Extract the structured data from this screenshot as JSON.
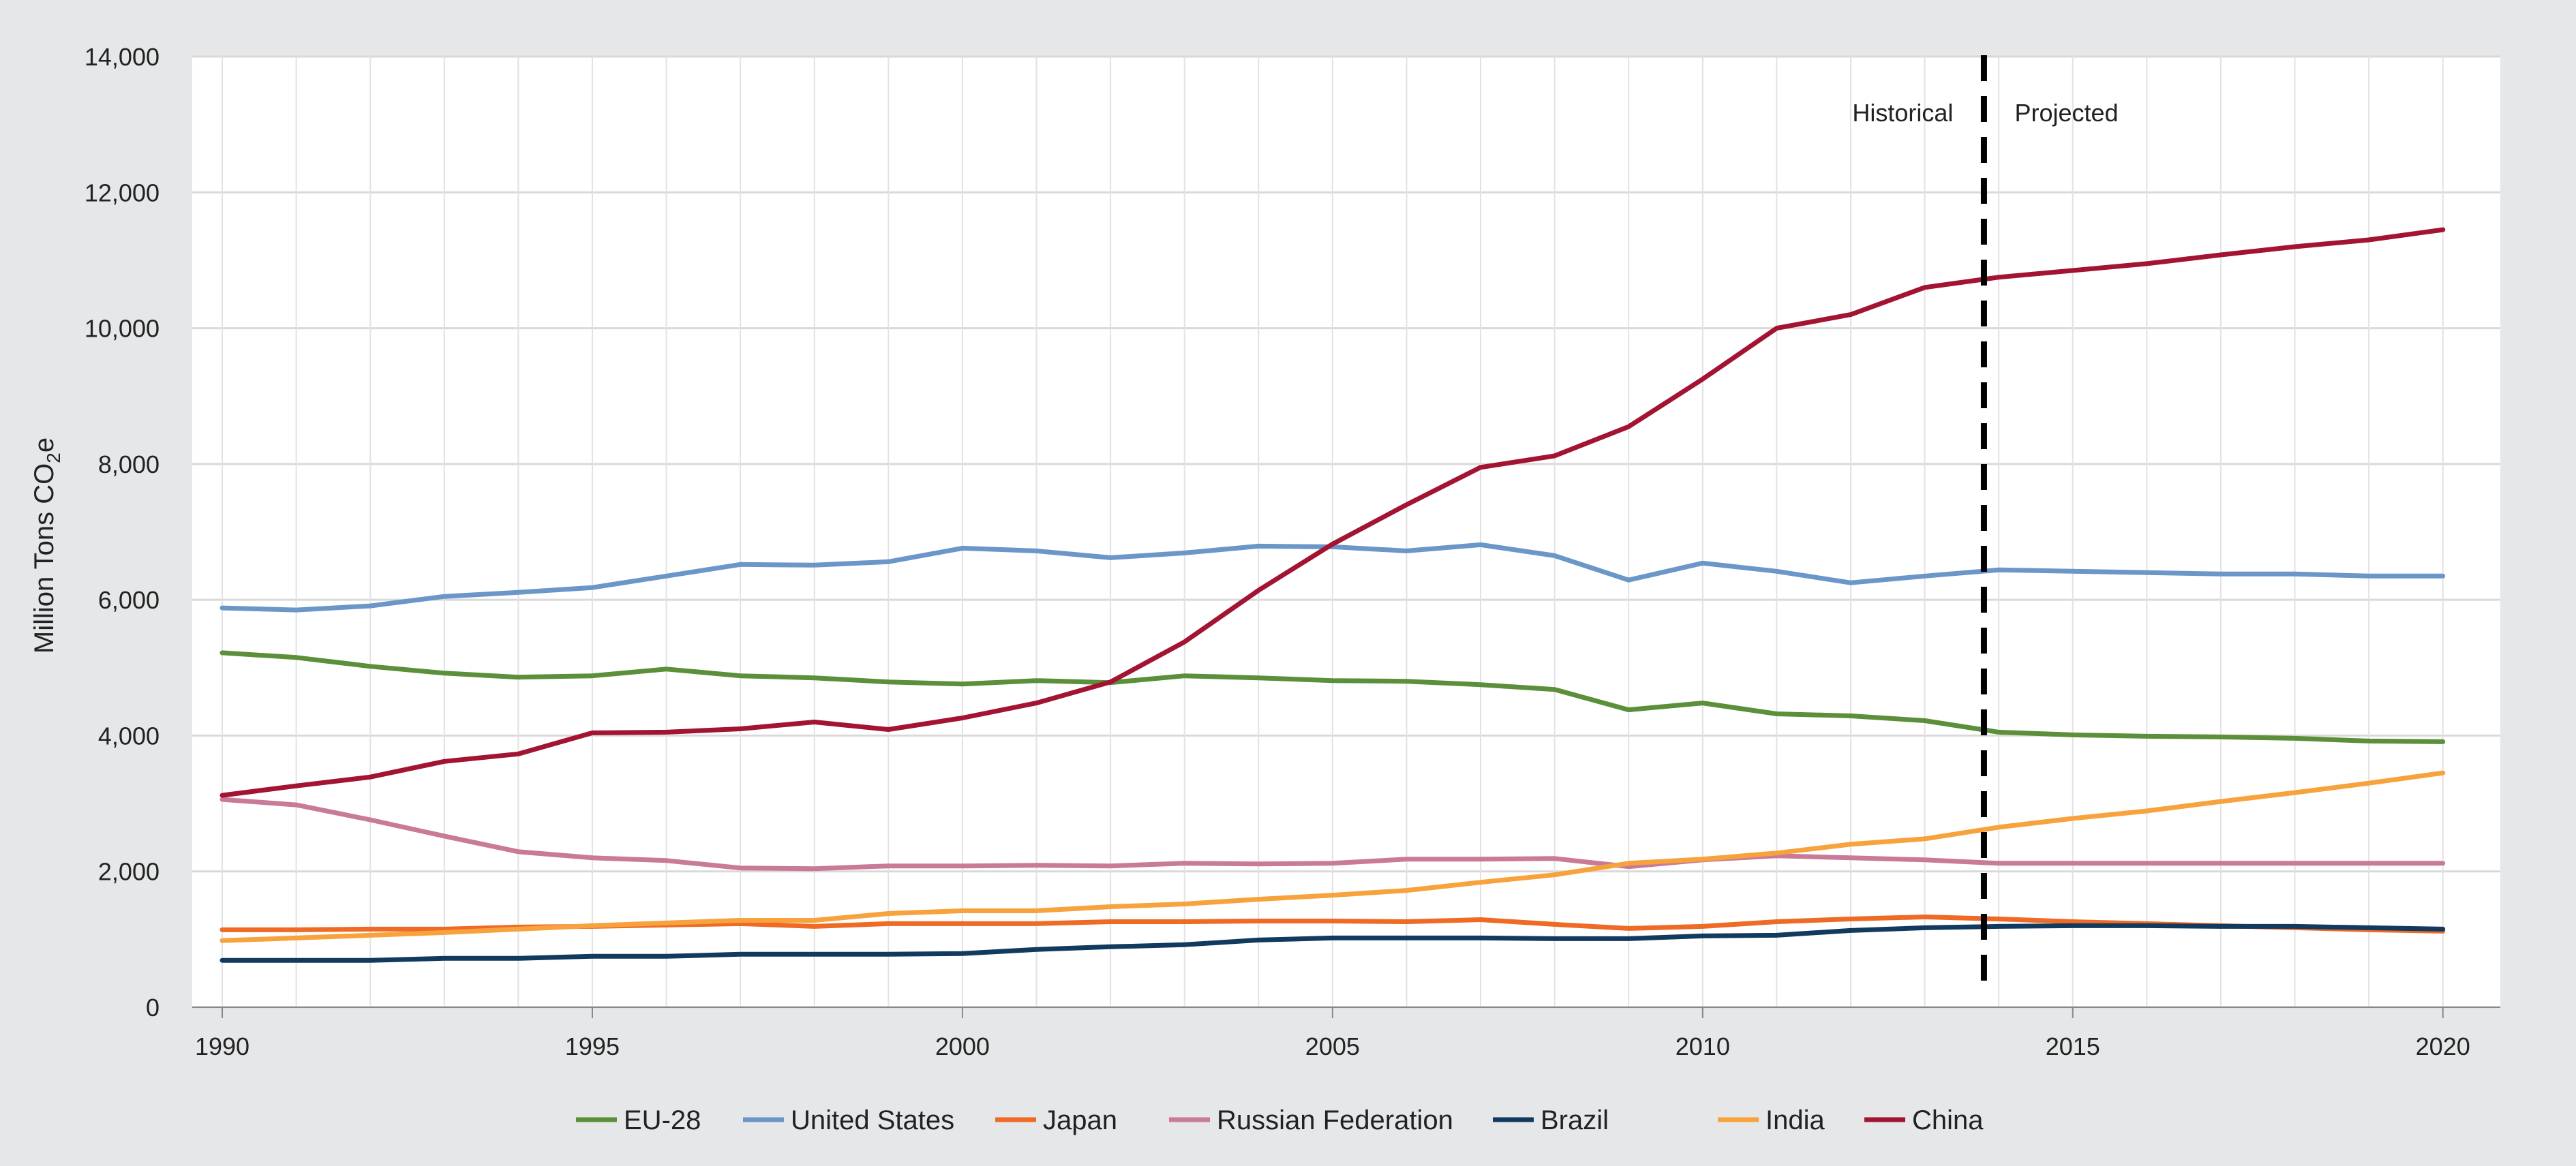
{
  "chart_data": {
    "type": "line",
    "title": "",
    "xlabel": "",
    "ylabel": "Million Tons CO",
    "ylabel_sub": "2",
    "ylabel_suffix": "e",
    "xlim": [
      1990,
      2020.5
    ],
    "ylim": [
      0,
      14000
    ],
    "grid": true,
    "legend_position": "bottom",
    "x_ticks": [
      1990,
      1995,
      2000,
      2005,
      2010,
      2015,
      2020
    ],
    "x_tick_labels": [
      "1990",
      "1995",
      "2000",
      "2005",
      "2010",
      "2015",
      "2020"
    ],
    "y_ticks": [
      0,
      2000,
      4000,
      6000,
      8000,
      10000,
      12000,
      14000
    ],
    "y_tick_labels": [
      "0",
      "2,000",
      "4,000",
      "6,000",
      "8,000",
      "10,000",
      "12,000",
      "14,000"
    ],
    "divider": {
      "x": 2013.8,
      "left_label": "Historical",
      "right_label": "Projected"
    },
    "x": [
      1990,
      1991,
      1992,
      1993,
      1994,
      1995,
      1996,
      1997,
      1998,
      1999,
      2000,
      2001,
      2002,
      2003,
      2004,
      2005,
      2006,
      2007,
      2008,
      2009,
      2010,
      2011,
      2012,
      2013,
      2014,
      2015,
      2016,
      2017,
      2018,
      2019,
      2020
    ],
    "series": [
      {
        "name": "EU-28",
        "color": "#5b8f3a",
        "values": [
          5220,
          5150,
          5020,
          4920,
          4860,
          4880,
          4980,
          4880,
          4850,
          4790,
          4760,
          4810,
          4780,
          4880,
          4850,
          4810,
          4800,
          4750,
          4680,
          4380,
          4480,
          4320,
          4290,
          4220,
          4050,
          4010,
          3990,
          3980,
          3960,
          3920,
          3910
        ]
      },
      {
        "name": "United States",
        "color": "#6b96c8",
        "values": [
          5880,
          5850,
          5910,
          6050,
          6110,
          6180,
          6350,
          6520,
          6510,
          6560,
          6760,
          6720,
          6620,
          6690,
          6790,
          6780,
          6720,
          6810,
          6650,
          6290,
          6540,
          6420,
          6250,
          6350,
          6440,
          6420,
          6400,
          6380,
          6380,
          6350,
          6350
        ]
      },
      {
        "name": "Japan",
        "color": "#ee6a25",
        "values": [
          1140,
          1140,
          1150,
          1150,
          1180,
          1190,
          1210,
          1230,
          1190,
          1230,
          1230,
          1230,
          1260,
          1260,
          1270,
          1270,
          1260,
          1290,
          1220,
          1160,
          1190,
          1260,
          1300,
          1330,
          1300,
          1260,
          1230,
          1200,
          1170,
          1140,
          1120
        ]
      },
      {
        "name": "Russian Federation",
        "color": "#c97a98",
        "values": [
          3060,
          2980,
          2760,
          2520,
          2290,
          2200,
          2160,
          2050,
          2040,
          2080,
          2080,
          2090,
          2080,
          2120,
          2110,
          2120,
          2180,
          2180,
          2190,
          2070,
          2170,
          2230,
          2200,
          2170,
          2120,
          2120,
          2120,
          2120,
          2120,
          2120,
          2120
        ]
      },
      {
        "name": "Brazil",
        "color": "#123a5f",
        "values": [
          690,
          690,
          690,
          720,
          720,
          750,
          750,
          780,
          780,
          780,
          790,
          850,
          890,
          920,
          990,
          1020,
          1020,
          1020,
          1010,
          1010,
          1050,
          1060,
          1130,
          1170,
          1190,
          1200,
          1200,
          1190,
          1190,
          1170,
          1150
        ]
      },
      {
        "name": "India",
        "color": "#f7a23c",
        "values": [
          980,
          1020,
          1060,
          1100,
          1150,
          1200,
          1240,
          1280,
          1280,
          1380,
          1420,
          1420,
          1480,
          1520,
          1590,
          1650,
          1720,
          1840,
          1950,
          2120,
          2180,
          2270,
          2400,
          2480,
          2650,
          2780,
          2890,
          3030,
          3160,
          3300,
          3450
        ]
      },
      {
        "name": "China",
        "color": "#a31432",
        "values": [
          3120,
          3260,
          3390,
          3620,
          3730,
          4040,
          4050,
          4100,
          4200,
          4090,
          4260,
          4480,
          4790,
          5380,
          6140,
          6820,
          7400,
          7950,
          8120,
          8550,
          9250,
          10000,
          10200,
          10600,
          10750,
          10850,
          10950,
          11080,
          11200,
          11300,
          11450
        ]
      }
    ]
  }
}
